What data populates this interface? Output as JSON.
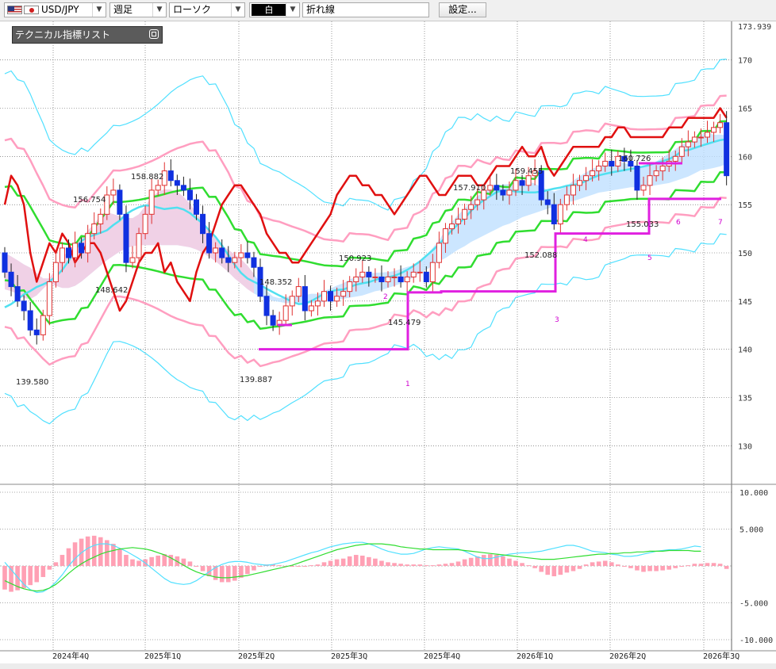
{
  "toolbar": {
    "symbol": "USD/JPY",
    "period": "週足",
    "chart_type": "ローソク",
    "color_mode": "白",
    "line_type": "折れ線",
    "settings_button": "設定..."
  },
  "panel": {
    "title": "テクニカル指標リスト"
  },
  "colors": {
    "up_candle": "#e03030",
    "down_candle": "#1030e0",
    "bollinger_outer": "#50e0ff",
    "bollinger_inner": "#ff9ec0",
    "middle_line": "#30dd30",
    "kijun_line": "#50e0f0",
    "red_line": "#e01010",
    "cloud_blue": "#bfe0ff",
    "cloud_pink": "#ffc8dc",
    "step_line": "#e020e0",
    "macd_hist": "#ffa0b4"
  },
  "chart_data": [
    {
      "type": "candlestick",
      "symbol": "USD/JPY",
      "price_axis": {
        "min": 126,
        "max": 174,
        "ticks": [
          130,
          135,
          140,
          145,
          150,
          155,
          160,
          165,
          170
        ],
        "top_label": "173.939"
      },
      "x_labels": [
        "2024年4Q",
        "2025年1Q",
        "2025年2Q",
        "2025年3Q",
        "2025年4Q",
        "2026年1Q",
        "2026年2Q",
        "2026年3Q"
      ],
      "grid": true,
      "annotations": [
        "156.754",
        "148.642",
        "139.580",
        "158.882",
        "139.887",
        "148.352",
        "150.923",
        "145.479",
        "157.910",
        "159.455",
        "152.088",
        "160.726",
        "155.033"
      ],
      "step_labels": [
        "1",
        "2",
        "3",
        "4",
        "5",
        "6",
        "7"
      ],
      "closes": [
        148.0,
        146.5,
        145.0,
        144.0,
        142.0,
        141.5,
        143.5,
        147.0,
        149.0,
        150.5,
        149.5,
        151.0,
        150.0,
        152.0,
        153.0,
        154.0,
        156.0,
        156.5,
        154.0,
        149.0,
        149.5,
        152.0,
        154.0,
        156.5,
        157.0,
        158.5,
        157.5,
        157.0,
        156.5,
        155.5,
        154.0,
        152.0,
        150.0,
        150.5,
        149.5,
        149.0,
        149.5,
        150.0,
        149.5,
        148.5,
        145.5,
        143.5,
        142.5,
        143.0,
        144.5,
        145.5,
        146.5,
        144.0,
        144.5,
        145.0,
        146.0,
        145.0,
        145.5,
        146.0,
        147.0,
        147.5,
        148.0,
        147.5,
        147.5,
        147.0,
        147.5,
        147.5,
        147.0,
        147.5,
        148.0,
        148.0,
        147.0,
        149.0,
        151.0,
        152.5,
        153.0,
        153.5,
        154.5,
        155.0,
        155.5,
        156.5,
        157.0,
        156.5,
        156.0,
        156.5,
        157.5,
        157.0,
        158.0,
        158.5,
        155.5,
        155.0,
        153.0,
        155.0,
        156.0,
        157.0,
        157.5,
        158.0,
        158.5,
        159.0,
        159.5,
        159.0,
        160.0,
        159.5,
        159.0,
        156.5,
        157.0,
        158.0,
        158.5,
        159.0,
        159.5,
        160.0,
        161.0,
        161.5,
        162.0,
        162.0,
        162.5,
        163.0,
        163.5,
        158.0
      ],
      "opens": [
        150.0,
        148.0,
        146.5,
        145.0,
        144.0,
        142.0,
        141.5,
        143.5,
        147.0,
        149.0,
        150.5,
        149.5,
        151.0,
        150.0,
        152.0,
        153.0,
        154.0,
        156.0,
        156.5,
        154.0,
        149.0,
        149.5,
        152.0,
        154.0,
        156.5,
        157.0,
        158.5,
        157.5,
        157.0,
        156.5,
        155.5,
        154.0,
        152.0,
        150.0,
        150.5,
        149.5,
        149.0,
        149.5,
        150.0,
        149.5,
        148.5,
        145.5,
        143.5,
        142.5,
        143.0,
        144.5,
        145.5,
        146.5,
        144.0,
        144.5,
        145.0,
        146.0,
        145.0,
        145.5,
        146.0,
        147.0,
        147.5,
        148.0,
        147.5,
        147.5,
        147.0,
        147.5,
        147.5,
        147.0,
        147.5,
        148.0,
        148.0,
        147.0,
        149.0,
        151.0,
        152.5,
        153.0,
        153.5,
        154.5,
        155.0,
        155.5,
        156.5,
        157.0,
        156.5,
        156.0,
        156.5,
        157.5,
        157.0,
        158.0,
        158.5,
        155.5,
        155.0,
        153.0,
        155.0,
        156.0,
        157.0,
        157.5,
        158.0,
        158.5,
        159.0,
        159.5,
        159.0,
        160.0,
        159.5,
        159.0,
        156.5,
        157.0,
        158.0,
        158.5,
        159.0,
        159.5,
        160.0,
        161.0,
        161.5,
        162.0,
        162.0,
        162.5,
        163.0,
        163.5
      ],
      "indicator_lines": {
        "red_line": [
          155,
          158,
          157,
          155,
          150,
          147,
          149,
          151,
          150,
          152,
          151,
          149,
          150,
          151,
          151,
          150,
          148,
          146,
          144,
          145,
          147,
          149,
          150,
          150,
          151,
          148,
          149,
          147,
          146,
          145,
          148,
          150,
          151,
          153,
          155,
          156,
          157,
          157,
          156,
          155,
          154,
          152,
          151,
          150,
          150,
          149,
          149,
          150,
          151,
          152,
          153,
          154,
          156,
          157,
          158,
          158,
          157,
          157,
          156,
          156,
          155,
          154,
          155,
          156,
          157,
          158,
          158,
          157,
          156,
          156,
          157,
          158,
          158,
          158,
          157,
          157,
          158,
          159,
          159,
          159,
          160,
          161,
          160,
          160,
          161,
          159,
          158,
          159,
          160,
          161,
          161,
          161,
          161,
          161,
          162,
          162,
          163,
          163,
          162,
          162,
          162,
          162,
          162,
          162,
          163,
          163,
          163,
          164,
          164,
          164,
          164,
          164,
          165,
          164
        ],
        "middle_line": [
          152,
          152,
          151,
          151,
          150,
          149,
          148,
          147,
          147,
          147,
          147,
          147,
          148,
          148,
          149,
          150,
          151,
          152,
          152,
          152,
          152,
          152,
          152,
          152,
          152,
          152,
          152,
          152,
          152,
          152,
          152,
          152,
          151,
          151,
          150,
          149,
          148,
          148,
          147,
          147,
          146,
          146,
          146,
          146,
          146,
          146,
          146,
          146,
          146,
          146,
          146,
          146,
          146,
          146,
          147,
          147,
          147,
          147,
          147,
          147,
          147,
          148,
          148,
          148,
          149,
          149,
          149,
          150,
          150,
          151,
          151,
          152,
          152,
          152,
          153,
          153,
          153,
          154,
          154,
          154,
          155,
          155,
          155,
          155,
          156,
          156,
          156,
          156,
          156,
          157,
          157,
          157,
          157,
          157,
          158,
          158,
          158,
          158,
          158,
          158,
          158,
          158,
          158,
          158,
          158,
          159,
          159,
          159,
          159,
          160,
          160,
          160,
          161,
          161
        ]
      },
      "step_line": [
        {
          "label": "1",
          "value": 140.0
        },
        {
          "label": "2",
          "value": 145.9
        },
        {
          "label": "3",
          "value": 146.0
        },
        {
          "label": "4",
          "value": 152.0
        },
        {
          "label": "5",
          "value": 152.0
        },
        {
          "label": "6",
          "value": 155.6
        },
        {
          "label": "7",
          "value": 155.6
        }
      ]
    },
    {
      "type": "bar",
      "name": "oscillator",
      "y_axis": {
        "min": -10,
        "max": 10,
        "ticks": [
          "10.000",
          "5.000",
          "-5.000",
          "-10.000"
        ]
      },
      "histogram": [
        -3.2,
        -3.5,
        -3.3,
        -3.0,
        -2.6,
        -2.2,
        -1.5,
        -0.5,
        0.5,
        1.5,
        2.4,
        3.2,
        3.7,
        4.0,
        4.1,
        3.9,
        3.5,
        3.0,
        2.3,
        1.5,
        0.9,
        0.7,
        0.9,
        1.2,
        1.4,
        1.6,
        1.5,
        1.3,
        1.0,
        0.6,
        0.0,
        -0.7,
        -1.4,
        -1.9,
        -2.2,
        -2.2,
        -2.0,
        -1.6,
        -1.1,
        -0.6,
        -0.1,
        0.2,
        0.2,
        0.1,
        0.0,
        -0.1,
        -0.1,
        -0.1,
        0.1,
        0.2,
        0.5,
        0.7,
        0.9,
        1.0,
        1.3,
        1.5,
        1.4,
        1.2,
        1.0,
        0.7,
        0.5,
        0.4,
        0.3,
        0.2,
        0.2,
        0.2,
        0.1,
        0.1,
        0.2,
        0.3,
        0.4,
        0.6,
        0.9,
        1.1,
        1.3,
        1.5,
        1.6,
        1.5,
        1.3,
        1.0,
        0.7,
        0.4,
        0.1,
        -0.3,
        -0.8,
        -1.2,
        -1.4,
        -1.2,
        -0.9,
        -0.7,
        -0.4,
        0.2,
        0.5,
        0.6,
        0.7,
        0.5,
        0.2,
        0.0,
        -0.3,
        -0.6,
        -0.8,
        -0.7,
        -0.7,
        -0.6,
        -0.5,
        -0.3,
        -0.1,
        0.1,
        0.3,
        0.3,
        0.4,
        0.4,
        0.3,
        -0.4
      ],
      "line_cyan": [
        0.5,
        -0.5,
        -1.5,
        -2.5,
        -3.2,
        -3.6,
        -3.5,
        -3.0,
        -2.2,
        -1.2,
        0.0,
        1.0,
        1.8,
        2.4,
        2.8,
        3.0,
        3.0,
        2.8,
        2.4,
        2.0,
        1.5,
        1.0,
        0.4,
        -0.3,
        -1.0,
        -1.7,
        -2.2,
        -2.4,
        -2.5,
        -2.4,
        -2.0,
        -1.4,
        -0.8,
        -0.2,
        0.2,
        0.5,
        0.6,
        0.6,
        0.5,
        0.3,
        0.2,
        0.1,
        0.2,
        0.4,
        0.6,
        0.9,
        1.2,
        1.5,
        1.8,
        2.0,
        2.3,
        2.6,
        2.8,
        3.0,
        3.1,
        3.2,
        3.2,
        3.0,
        2.7,
        2.3,
        2.0,
        1.8,
        1.6,
        1.6,
        1.7,
        2.0,
        2.3,
        2.5,
        2.6,
        2.5,
        2.4,
        2.3,
        2.0,
        1.6,
        1.2,
        1.0,
        1.0,
        1.2,
        1.4,
        1.6,
        1.7,
        1.8,
        1.8,
        1.9,
        2.0,
        2.2,
        2.4,
        2.6,
        2.8,
        2.8,
        2.6,
        2.3,
        2.0,
        1.9,
        1.8,
        1.6,
        1.5,
        1.3,
        1.3,
        1.4,
        1.6,
        1.8,
        2.0,
        2.1,
        2.2,
        2.2,
        2.3,
        2.5,
        2.7,
        2.6
      ],
      "line_green": [
        -2.0,
        -2.4,
        -2.8,
        -3.1,
        -3.3,
        -3.4,
        -3.3,
        -3.0,
        -2.5,
        -1.8,
        -1.0,
        -0.3,
        0.3,
        0.8,
        1.2,
        1.6,
        1.9,
        2.1,
        2.3,
        2.4,
        2.5,
        2.4,
        2.3,
        2.1,
        1.8,
        1.5,
        1.1,
        0.6,
        0.1,
        -0.4,
        -0.8,
        -1.1,
        -1.3,
        -1.5,
        -1.6,
        -1.6,
        -1.5,
        -1.4,
        -1.3,
        -1.1,
        -0.9,
        -0.7,
        -0.5,
        -0.3,
        -0.1,
        0.1,
        0.4,
        0.7,
        1.0,
        1.3,
        1.6,
        1.9,
        2.2,
        2.4,
        2.6,
        2.8,
        2.9,
        3.0,
        3.0,
        3.0,
        2.9,
        2.8,
        2.6,
        2.5,
        2.4,
        2.3,
        2.3,
        2.2,
        2.2,
        2.2,
        2.2,
        2.2,
        2.1,
        2.0,
        1.9,
        1.8,
        1.7,
        1.6,
        1.5,
        1.4,
        1.3,
        1.2,
        1.1,
        1.0,
        0.9,
        0.9,
        0.9,
        1.0,
        1.1,
        1.2,
        1.3,
        1.4,
        1.5,
        1.6,
        1.6,
        1.7,
        1.7,
        1.8,
        1.8,
        1.9,
        1.9,
        2.0,
        2.0,
        2.0,
        2.1,
        2.1,
        2.1,
        2.1,
        2.0,
        2.0
      ]
    }
  ]
}
